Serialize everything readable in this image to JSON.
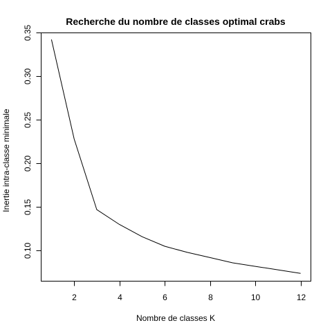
{
  "chart_data": {
    "type": "line",
    "title": "Recherche du nombre de classes optimal crabs",
    "xlabel": "Nombre de classes K",
    "ylabel": "Inertie intra-classe minimale",
    "xlim": [
      0.56,
      12.44
    ],
    "ylim": [
      0.0654,
      0.35
    ],
    "xticks": [
      2,
      4,
      6,
      8,
      10,
      12
    ],
    "yticks": [
      0.1,
      0.15,
      0.2,
      0.25,
      0.3,
      0.35
    ],
    "xtick_labels": [
      "2",
      "4",
      "6",
      "8",
      "10",
      "12"
    ],
    "ytick_labels": [
      "0.10",
      "0.15",
      "0.20",
      "0.25",
      "0.30",
      "0.35"
    ],
    "grid": false,
    "series": [
      {
        "x": [
          1,
          2,
          3,
          4,
          5,
          6,
          7,
          8,
          9,
          10,
          11,
          12
        ],
        "y": [
          0.342,
          0.228,
          0.147,
          0.13,
          0.116,
          0.105,
          0.098,
          0.092,
          0.086,
          0.082,
          0.078,
          0.074
        ]
      }
    ]
  }
}
